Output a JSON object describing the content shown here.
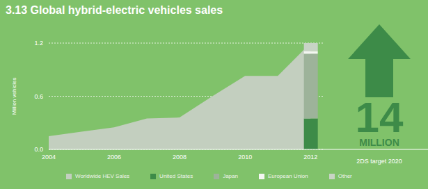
{
  "chart_data": {
    "type": "area",
    "title": "3.13 Global hybrid-electric vehicles sales",
    "y_label": "Million vehicles",
    "x": [
      2004,
      2005,
      2006,
      2007,
      2008,
      2009,
      2010,
      2011,
      2012
    ],
    "series": [
      {
        "name": "Worldwide HEV Sales",
        "type": "area",
        "color": "#c3cfbf",
        "values": [
          0.15,
          0.2,
          0.25,
          0.35,
          0.36,
          0.6,
          0.83,
          0.83,
          1.2
        ]
      },
      {
        "name": "United States",
        "type": "bar",
        "color": "#3d8b48",
        "values": [
          null,
          null,
          null,
          null,
          null,
          null,
          null,
          null,
          0.35
        ]
      },
      {
        "name": "Japan",
        "type": "bar",
        "color": "#9db39a",
        "values": [
          null,
          null,
          null,
          null,
          null,
          null,
          null,
          null,
          0.73
        ]
      },
      {
        "name": "European Union",
        "type": "bar",
        "color": "#f4f6f2",
        "values": [
          null,
          null,
          null,
          null,
          null,
          null,
          null,
          null,
          0.03
        ]
      },
      {
        "name": "Other",
        "type": "bar",
        "color": "#c8d4c5",
        "values": [
          null,
          null,
          null,
          null,
          null,
          null,
          null,
          null,
          0.09
        ]
      }
    ],
    "stacked": true,
    "xlim": [
      2004,
      2012.4
    ],
    "xticks": [
      2004,
      2006,
      2008,
      2010,
      2012
    ],
    "ylim": [
      0,
      1.2
    ],
    "yticks": [
      {
        "value": 0,
        "label": "0.0"
      },
      0.6,
      1.2
    ],
    "grid": true,
    "legend": "bottom",
    "annotation": {
      "label": "2DS target 2020",
      "value": 14,
      "text": "MILLION"
    }
  }
}
